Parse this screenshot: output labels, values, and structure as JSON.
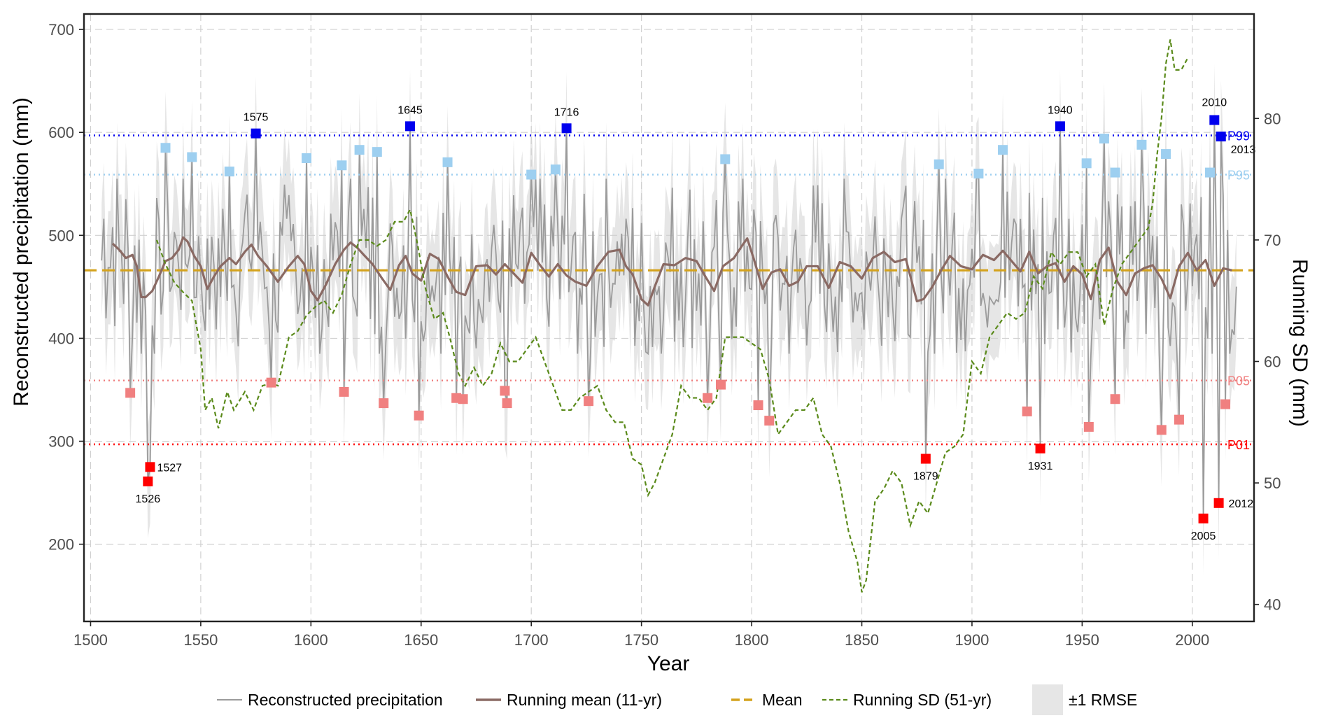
{
  "chart_data": {
    "type": "line",
    "xlabel": "Year",
    "ylabel": "Reconstructed precipitation (mm)",
    "y2label": "Running SD (mm)",
    "xlim": [
      1497,
      2028
    ],
    "ylim": [
      125,
      715
    ],
    "y2lim": [
      38.6,
      88.6
    ],
    "xticks": [
      1500,
      1550,
      1600,
      1650,
      1700,
      1750,
      1800,
      1850,
      1900,
      1950,
      2000
    ],
    "yticks": [
      200,
      300,
      400,
      500,
      600,
      700
    ],
    "y2ticks": [
      40,
      50,
      60,
      70,
      80
    ],
    "grid": true,
    "legend_position": "bottom",
    "mean": 466,
    "rmse": 55,
    "thresholds": [
      {
        "label": "P99",
        "value": 597,
        "color": "#0000ee"
      },
      {
        "label": "P95",
        "value": 559,
        "color": "#9dcff0"
      },
      {
        "label": "P05",
        "value": 359,
        "color": "#f08080"
      },
      {
        "label": "P01",
        "value": 297,
        "color": "#ff0000"
      }
    ],
    "extreme_wet": [
      {
        "year": 1575,
        "value": 599,
        "label": "1575"
      },
      {
        "year": 1645,
        "value": 606,
        "label": "1645"
      },
      {
        "year": 1716,
        "value": 604,
        "label": "1716"
      },
      {
        "year": 1940,
        "value": 606,
        "label": "1940"
      },
      {
        "year": 2010,
        "value": 612,
        "label": "2010"
      },
      {
        "year": 2013,
        "value": 596,
        "label": "2013"
      }
    ],
    "extreme_dry": [
      {
        "year": 1526,
        "value": 261,
        "label": "1526"
      },
      {
        "year": 1527,
        "value": 275,
        "label": "1527"
      },
      {
        "year": 1879,
        "value": 283,
        "label": "1879"
      },
      {
        "year": 1931,
        "value": 293,
        "label": "1931"
      },
      {
        "year": 2005,
        "value": 225,
        "label": "2005"
      },
      {
        "year": 2012,
        "value": 240,
        "label": "2012"
      }
    ],
    "moderate_wet": [
      {
        "year": 1534,
        "value": 585
      },
      {
        "year": 1546,
        "value": 576
      },
      {
        "year": 1563,
        "value": 562
      },
      {
        "year": 1598,
        "value": 575
      },
      {
        "year": 1614,
        "value": 568
      },
      {
        "year": 1622,
        "value": 583
      },
      {
        "year": 1630,
        "value": 581
      },
      {
        "year": 1662,
        "value": 571
      },
      {
        "year": 1700,
        "value": 559
      },
      {
        "year": 1711,
        "value": 564
      },
      {
        "year": 1788,
        "value": 574
      },
      {
        "year": 1885,
        "value": 569
      },
      {
        "year": 1903,
        "value": 560
      },
      {
        "year": 1914,
        "value": 583
      },
      {
        "year": 1952,
        "value": 570
      },
      {
        "year": 1960,
        "value": 594
      },
      {
        "year": 1965,
        "value": 561
      },
      {
        "year": 1977,
        "value": 588
      },
      {
        "year": 1988,
        "value": 579
      },
      {
        "year": 2008,
        "value": 561
      }
    ],
    "moderate_dry": [
      {
        "year": 1518,
        "value": 347
      },
      {
        "year": 1582,
        "value": 357
      },
      {
        "year": 1615,
        "value": 348
      },
      {
        "year": 1633,
        "value": 337
      },
      {
        "year": 1649,
        "value": 325
      },
      {
        "year": 1666,
        "value": 342
      },
      {
        "year": 1669,
        "value": 341
      },
      {
        "year": 1688,
        "value": 349
      },
      {
        "year": 1689,
        "value": 337
      },
      {
        "year": 1726,
        "value": 339
      },
      {
        "year": 1780,
        "value": 342
      },
      {
        "year": 1786,
        "value": 355
      },
      {
        "year": 1803,
        "value": 335
      },
      {
        "year": 1808,
        "value": 320
      },
      {
        "year": 1925,
        "value": 329
      },
      {
        "year": 1953,
        "value": 314
      },
      {
        "year": 1965,
        "value": 341
      },
      {
        "year": 1986,
        "value": 311
      },
      {
        "year": 1994,
        "value": 321
      },
      {
        "year": 2015,
        "value": 336
      }
    ],
    "running_mean": {
      "name": "Running mean (11-yr)",
      "points": [
        [
          1510,
          492
        ],
        [
          1513,
          486
        ],
        [
          1516,
          478
        ],
        [
          1519,
          481
        ],
        [
          1521,
          470
        ],
        [
          1523,
          440
        ],
        [
          1525,
          440
        ],
        [
          1528,
          446
        ],
        [
          1531,
          460
        ],
        [
          1534,
          475
        ],
        [
          1537,
          478
        ],
        [
          1540,
          486
        ],
        [
          1542,
          498
        ],
        [
          1544,
          494
        ],
        [
          1547,
          480
        ],
        [
          1550,
          470
        ],
        [
          1553,
          448
        ],
        [
          1556,
          460
        ],
        [
          1559,
          470
        ],
        [
          1563,
          478
        ],
        [
          1566,
          472
        ],
        [
          1570,
          484
        ],
        [
          1573,
          491
        ],
        [
          1576,
          480
        ],
        [
          1580,
          470
        ],
        [
          1585,
          455
        ],
        [
          1590,
          470
        ],
        [
          1594,
          480
        ],
        [
          1597,
          472
        ],
        [
          1600,
          446
        ],
        [
          1603,
          437
        ],
        [
          1607,
          453
        ],
        [
          1611,
          472
        ],
        [
          1615,
          486
        ],
        [
          1618,
          493
        ],
        [
          1621,
          488
        ],
        [
          1624,
          481
        ],
        [
          1628,
          472
        ],
        [
          1632,
          459
        ],
        [
          1636,
          447
        ],
        [
          1640,
          471
        ],
        [
          1643,
          480
        ],
        [
          1646,
          463
        ],
        [
          1650,
          456
        ],
        [
          1654,
          482
        ],
        [
          1658,
          477
        ],
        [
          1662,
          460
        ],
        [
          1666,
          445
        ],
        [
          1670,
          442
        ],
        [
          1675,
          470
        ],
        [
          1680,
          471
        ],
        [
          1684,
          462
        ],
        [
          1688,
          472
        ],
        [
          1692,
          463
        ],
        [
          1696,
          454
        ],
        [
          1700,
          483
        ],
        [
          1704,
          471
        ],
        [
          1708,
          460
        ],
        [
          1712,
          472
        ],
        [
          1716,
          461
        ],
        [
          1720,
          455
        ],
        [
          1725,
          451
        ],
        [
          1730,
          470
        ],
        [
          1735,
          484
        ],
        [
          1740,
          486
        ],
        [
          1743,
          470
        ],
        [
          1746,
          462
        ],
        [
          1750,
          438
        ],
        [
          1753,
          432
        ],
        [
          1756,
          450
        ],
        [
          1760,
          472
        ],
        [
          1765,
          471
        ],
        [
          1770,
          478
        ],
        [
          1775,
          475
        ],
        [
          1779,
          460
        ],
        [
          1783,
          446
        ],
        [
          1787,
          470
        ],
        [
          1792,
          478
        ],
        [
          1796,
          491
        ],
        [
          1798,
          497
        ],
        [
          1801,
          477
        ],
        [
          1805,
          448
        ],
        [
          1809,
          464
        ],
        [
          1813,
          467
        ],
        [
          1817,
          451
        ],
        [
          1821,
          455
        ],
        [
          1825,
          470
        ],
        [
          1830,
          470
        ],
        [
          1835,
          449
        ],
        [
          1840,
          474
        ],
        [
          1845,
          470
        ],
        [
          1850,
          458
        ],
        [
          1855,
          478
        ],
        [
          1860,
          484
        ],
        [
          1865,
          474
        ],
        [
          1870,
          477
        ],
        [
          1875,
          436
        ],
        [
          1878,
          438
        ],
        [
          1882,
          450
        ],
        [
          1886,
          466
        ],
        [
          1890,
          480
        ],
        [
          1895,
          470
        ],
        [
          1900,
          467
        ],
        [
          1905,
          481
        ],
        [
          1910,
          476
        ],
        [
          1914,
          485
        ],
        [
          1918,
          475
        ],
        [
          1922,
          465
        ],
        [
          1926,
          484
        ],
        [
          1930,
          463
        ],
        [
          1934,
          470
        ],
        [
          1938,
          473
        ],
        [
          1942,
          455
        ],
        [
          1946,
          470
        ],
        [
          1950,
          462
        ],
        [
          1954,
          438
        ],
        [
          1958,
          476
        ],
        [
          1962,
          488
        ],
        [
          1966,
          455
        ],
        [
          1970,
          442
        ],
        [
          1974,
          463
        ],
        [
          1978,
          468
        ],
        [
          1982,
          471
        ],
        [
          1986,
          458
        ],
        [
          1990,
          439
        ],
        [
          1994,
          470
        ],
        [
          1998,
          483
        ],
        [
          2002,
          466
        ],
        [
          2006,
          476
        ],
        [
          2010,
          451
        ],
        [
          2014,
          468
        ],
        [
          2018,
          466
        ]
      ]
    },
    "running_sd": {
      "name": "Running SD (51-yr)",
      "points": [
        [
          1530,
          70
        ],
        [
          1534,
          68
        ],
        [
          1538,
          66.5
        ],
        [
          1542,
          65.7
        ],
        [
          1546,
          65
        ],
        [
          1550,
          61
        ],
        [
          1552,
          56
        ],
        [
          1555,
          57
        ],
        [
          1558,
          54.5
        ],
        [
          1562,
          57.5
        ],
        [
          1565,
          56
        ],
        [
          1570,
          57.5
        ],
        [
          1574,
          56
        ],
        [
          1578,
          58
        ],
        [
          1582,
          58.2
        ],
        [
          1585,
          58
        ],
        [
          1590,
          62
        ],
        [
          1594,
          62.5
        ],
        [
          1598,
          63.8
        ],
        [
          1602,
          64.5
        ],
        [
          1606,
          65
        ],
        [
          1610,
          64
        ],
        [
          1614,
          65.5
        ],
        [
          1618,
          68
        ],
        [
          1622,
          70
        ],
        [
          1626,
          70
        ],
        [
          1630,
          69.5
        ],
        [
          1634,
          70
        ],
        [
          1638,
          71.5
        ],
        [
          1642,
          71.5
        ],
        [
          1645,
          72.5
        ],
        [
          1648,
          70
        ],
        [
          1652,
          66
        ],
        [
          1656,
          63.5
        ],
        [
          1660,
          64
        ],
        [
          1663,
          62
        ],
        [
          1667,
          59
        ],
        [
          1670,
          58
        ],
        [
          1674,
          59.5
        ],
        [
          1678,
          58
        ],
        [
          1682,
          59
        ],
        [
          1686,
          61.5
        ],
        [
          1690,
          60
        ],
        [
          1694,
          60
        ],
        [
          1698,
          61
        ],
        [
          1702,
          62
        ],
        [
          1706,
          60
        ],
        [
          1710,
          58
        ],
        [
          1714,
          56
        ],
        [
          1718,
          56
        ],
        [
          1722,
          57
        ],
        [
          1726,
          57.5
        ],
        [
          1730,
          58
        ],
        [
          1734,
          56
        ],
        [
          1738,
          55
        ],
        [
          1742,
          55
        ],
        [
          1746,
          52
        ],
        [
          1750,
          51.5
        ],
        [
          1753,
          49
        ],
        [
          1756,
          50
        ],
        [
          1760,
          52
        ],
        [
          1764,
          54
        ],
        [
          1768,
          58
        ],
        [
          1772,
          57
        ],
        [
          1776,
          57
        ],
        [
          1780,
          56
        ],
        [
          1784,
          57
        ],
        [
          1788,
          62
        ],
        [
          1792,
          62
        ],
        [
          1796,
          62
        ],
        [
          1800,
          61.5
        ],
        [
          1804,
          61
        ],
        [
          1808,
          58.5
        ],
        [
          1812,
          54
        ],
        [
          1816,
          55
        ],
        [
          1820,
          56
        ],
        [
          1824,
          56
        ],
        [
          1828,
          57
        ],
        [
          1832,
          54
        ],
        [
          1836,
          53
        ],
        [
          1840,
          50
        ],
        [
          1844,
          46
        ],
        [
          1848,
          43.5
        ],
        [
          1850,
          41
        ],
        [
          1852,
          42
        ],
        [
          1856,
          48.5
        ],
        [
          1860,
          49.5
        ],
        [
          1864,
          51
        ],
        [
          1868,
          50
        ],
        [
          1872,
          46.5
        ],
        [
          1876,
          48.5
        ],
        [
          1880,
          47.5
        ],
        [
          1884,
          50
        ],
        [
          1888,
          52.5
        ],
        [
          1892,
          53
        ],
        [
          1896,
          54
        ],
        [
          1900,
          60
        ],
        [
          1904,
          59
        ],
        [
          1908,
          62
        ],
        [
          1912,
          63
        ],
        [
          1916,
          64
        ],
        [
          1920,
          63.5
        ],
        [
          1924,
          64
        ],
        [
          1928,
          67
        ],
        [
          1932,
          66
        ],
        [
          1936,
          69
        ],
        [
          1940,
          68
        ],
        [
          1944,
          69
        ],
        [
          1948,
          69
        ],
        [
          1952,
          67
        ],
        [
          1956,
          68
        ],
        [
          1960,
          63
        ],
        [
          1964,
          66
        ],
        [
          1968,
          68
        ],
        [
          1972,
          69
        ],
        [
          1976,
          70
        ],
        [
          1980,
          71
        ],
        [
          1982,
          73
        ],
        [
          1984,
          77
        ],
        [
          1986,
          80
        ],
        [
          1988,
          84.5
        ],
        [
          1990,
          86.5
        ],
        [
          1992,
          84
        ],
        [
          1995,
          84
        ],
        [
          1998,
          85
        ]
      ]
    },
    "annual_seed": 7
  },
  "legend": {
    "items": [
      {
        "label": "Reconstructed precipitation"
      },
      {
        "label": "Running mean (11-yr)"
      },
      {
        "label": "Mean"
      },
      {
        "label": "Running SD (51-yr)"
      },
      {
        "label": "±1 RMSE"
      }
    ]
  },
  "colors": {
    "precip": "#9b9b9b",
    "running_mean": "#8a6a64",
    "mean": "#d4a21c",
    "running_sd": "#5a8a1a",
    "rmse_band": "#e6e6e6",
    "grid": "#d0d0d0",
    "wet_extreme": "#0000ee",
    "wet_moderate": "#9dcff0",
    "dry_extreme": "#ff0000",
    "dry_moderate": "#f08080"
  }
}
